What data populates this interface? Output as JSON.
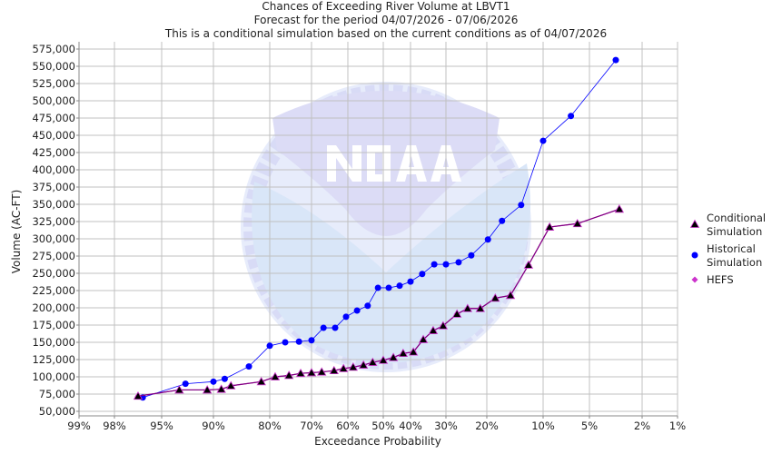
{
  "chart_data": {
    "type": "line",
    "title": "Chances of Exceeding River Volume at LBVT1",
    "subtitle": "Forecast for the period 04/07/2026 - 07/06/2026",
    "subtitle2": "This is a conditional simulation based on the current conditions as of 04/07/2026",
    "xlabel": "Exceedance Probability",
    "ylabel": "Volume (AC-FT)",
    "xscale": "normal-probability",
    "xlim": [
      99,
      1
    ],
    "ylim": [
      50000,
      575000
    ],
    "grid": true,
    "legend_position": "right",
    "x_ticks": [
      99,
      98,
      95,
      90,
      80,
      70,
      60,
      50,
      40,
      30,
      20,
      10,
      5,
      2,
      1
    ],
    "x_tick_labels": [
      "99%",
      "98%",
      "95%",
      "90%",
      "80%",
      "70%",
      "60%",
      "50%",
      "40%",
      "30%",
      "20%",
      "10%",
      "5%",
      "2%",
      "1%"
    ],
    "y_ticks": [
      50000,
      75000,
      100000,
      125000,
      150000,
      175000,
      200000,
      225000,
      250000,
      275000,
      300000,
      325000,
      350000,
      375000,
      400000,
      425000,
      450000,
      475000,
      500000,
      525000,
      550000,
      575000
    ],
    "y_tick_labels": [
      "50,000",
      "75,000",
      "100,000",
      "125,000",
      "150,000",
      "175,000",
      "200,000",
      "225,000",
      "250,000",
      "275,000",
      "300,000",
      "325,000",
      "350,000",
      "375,000",
      "400,000",
      "425,000",
      "450,000",
      "475,000",
      "500,000",
      "525,000",
      "550,000",
      "575,000"
    ],
    "series": [
      {
        "name": "Conditional Simulation",
        "legend_lines": [
          "Conditional",
          "Simulation"
        ],
        "color": "#800080",
        "marker": "triangle",
        "x": [
          96.5,
          93.3,
          90.6,
          88.6,
          86.9,
          81.5,
          78.7,
          75.4,
          72.6,
          70,
          67.2,
          63.8,
          61.2,
          58.5,
          55.6,
          53,
          50,
          46.3,
          42.7,
          39.2,
          36.4,
          33.6,
          30.8,
          27.3,
          24.7,
          21.6,
          18.5,
          15.8,
          12.6,
          9.3,
          6.3,
          3.3
        ],
        "y": [
          72000,
          81000,
          81000,
          82000,
          87000,
          93000,
          100000,
          102000,
          105000,
          106000,
          107000,
          109000,
          112000,
          114000,
          117000,
          121000,
          124000,
          128000,
          134000,
          136000,
          154000,
          167000,
          174000,
          191000,
          199000,
          199000,
          214000,
          218000,
          262000,
          317000,
          322000,
          343000
        ]
      },
      {
        "name": "Historical Simulation",
        "legend_lines": [
          "Historical",
          "Simulation"
        ],
        "color": "#0000ff",
        "marker": "circle",
        "x": [
          96.2,
          92.7,
          90,
          88,
          83.7,
          80,
          76.3,
          73,
          70,
          66.7,
          63.5,
          60.5,
          57.4,
          54.4,
          51.5,
          48,
          44,
          40,
          36.7,
          33.3,
          30,
          26.9,
          23.8,
          19.8,
          17.3,
          13.9,
          10,
          7,
          3.5
        ],
        "y": [
          70000,
          90000,
          93000,
          97000,
          115000,
          145000,
          150000,
          151000,
          153000,
          171000,
          171000,
          187000,
          196000,
          203000,
          229000,
          229000,
          232000,
          238000,
          249000,
          263000,
          263000,
          266000,
          276000,
          299000,
          326000,
          349000,
          442000,
          478000,
          559000
        ]
      },
      {
        "name": "HEFS",
        "legend_lines": [
          "HEFS"
        ],
        "color": "#cc33cc",
        "marker": "diamond",
        "x": [
          96.5,
          93.3,
          90.6,
          88.6,
          86.9,
          81.5,
          78.7,
          75.4,
          72.6,
          70,
          67.2,
          63.8,
          61.2,
          58.5,
          55.6,
          53,
          50,
          46.3,
          42.7,
          39.2,
          36.4,
          33.6,
          30.8,
          27.3,
          24.7,
          21.6,
          18.5,
          15.8,
          12.6,
          9.3,
          6.3,
          3.3
        ],
        "y": [
          72000,
          81000,
          81000,
          82000,
          87000,
          93000,
          100000,
          102000,
          105000,
          106000,
          107000,
          109000,
          112000,
          114000,
          117000,
          121000,
          124000,
          128000,
          134000,
          136000,
          154000,
          167000,
          174000,
          191000,
          199000,
          199000,
          214000,
          218000,
          262000,
          317000,
          322000,
          343000
        ]
      }
    ]
  },
  "watermark": {
    "top_text": "NATIONAL OCEANIC AND ATMOSPHERIC ADMINISTRATION",
    "bottom_text": "U.S. DEPARTMENT OF COMMERCE",
    "logo_text": "NOAA"
  }
}
